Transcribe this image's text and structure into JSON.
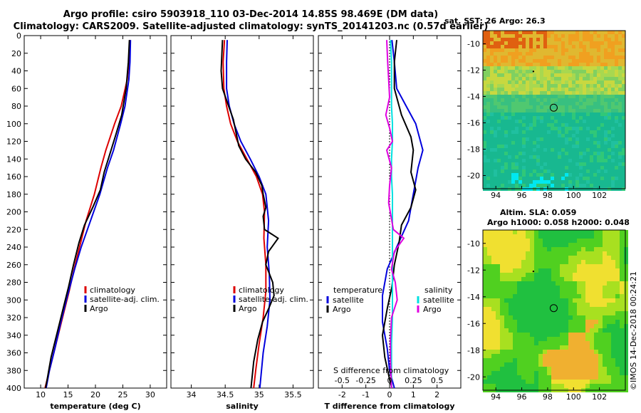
{
  "header": {
    "title_line1": "Argo profile: csiro 5903918_110 03-Dec-2014 14.85S 98.469E (DM data)",
    "title_line2": "Climatology: CARS2009. Satellite-adjusted climatology: synTS_20141203.nc (0.57d earlier)"
  },
  "colors": {
    "climatology": "#dd0000",
    "satellite": "#0000dd",
    "argo": "#000000",
    "sat_salinity": "#00e0e0",
    "argo_salinity": "#e000e0"
  },
  "chart_data": [
    {
      "type": "line",
      "id": "temperature",
      "xlabel": "temperature (deg C)",
      "ylabel": "",
      "xlim": [
        7,
        33
      ],
      "ylim": [
        400,
        0
      ],
      "xticks": [
        10,
        15,
        20,
        25,
        30
      ],
      "yticks": [
        0,
        20,
        40,
        60,
        80,
        100,
        120,
        140,
        160,
        180,
        200,
        220,
        240,
        260,
        280,
        300,
        320,
        340,
        360,
        380,
        400
      ],
      "legend": [
        "climatology",
        "satellite-adj. clim.",
        "Argo"
      ],
      "series": [
        {
          "name": "climatology",
          "color": "#dd0000",
          "points": [
            [
              26.3,
              5
            ],
            [
              26.1,
              30
            ],
            [
              25.8,
              50
            ],
            [
              24.7,
              80
            ],
            [
              23.5,
              100
            ],
            [
              21.9,
              130
            ],
            [
              21.0,
              150
            ],
            [
              19.8,
              180
            ],
            [
              18.3,
              210
            ],
            [
              17.1,
              240
            ],
            [
              16.3,
              260
            ],
            [
              15.2,
              290
            ],
            [
              14.0,
              320
            ],
            [
              12.8,
              350
            ],
            [
              11.6,
              380
            ],
            [
              10.8,
              400
            ]
          ]
        },
        {
          "name": "satellite-adj. clim.",
          "color": "#0000dd",
          "points": [
            [
              26.4,
              5
            ],
            [
              26.3,
              30
            ],
            [
              26.1,
              50
            ],
            [
              25.4,
              80
            ],
            [
              24.6,
              100
            ],
            [
              23.3,
              130
            ],
            [
              22.2,
              150
            ],
            [
              20.8,
              180
            ],
            [
              19.1,
              210
            ],
            [
              17.4,
              240
            ],
            [
              16.2,
              265
            ],
            [
              14.9,
              295
            ],
            [
              13.7,
              325
            ],
            [
              12.6,
              355
            ],
            [
              11.6,
              380
            ],
            [
              11.0,
              400
            ]
          ]
        },
        {
          "name": "Argo",
          "color": "#000000",
          "points": [
            [
              26.2,
              5
            ],
            [
              26.0,
              30
            ],
            [
              25.6,
              60
            ],
            [
              24.8,
              90
            ],
            [
              23.6,
              115
            ],
            [
              22.6,
              135
            ],
            [
              21.6,
              155
            ],
            [
              20.9,
              175
            ],
            [
              19.5,
              195
            ],
            [
              18.0,
              215
            ],
            [
              17.0,
              235
            ],
            [
              16.0,
              260
            ],
            [
              15.1,
              285
            ],
            [
              14.1,
              310
            ],
            [
              12.9,
              340
            ],
            [
              11.9,
              365
            ],
            [
              11.2,
              390
            ],
            [
              10.9,
              400
            ]
          ]
        }
      ]
    },
    {
      "type": "line",
      "id": "salinity",
      "xlabel": "salinity",
      "ylabel": "",
      "xlim": [
        33.7,
        35.8
      ],
      "ylim": [
        400,
        0
      ],
      "xticks": [
        34,
        34.5,
        35,
        35.5
      ],
      "xtick_labels": [
        "34",
        "34.5",
        "35",
        "35.5"
      ],
      "legend": [
        "climatology",
        "satellite-adj. clim.",
        "Argo"
      ],
      "series": [
        {
          "name": "climatology",
          "color": "#dd0000",
          "points": [
            [
              34.49,
              5
            ],
            [
              34.47,
              30
            ],
            [
              34.48,
              60
            ],
            [
              34.52,
              80
            ],
            [
              34.58,
              100
            ],
            [
              34.68,
              120
            ],
            [
              34.82,
              140
            ],
            [
              34.96,
              160
            ],
            [
              35.05,
              180
            ],
            [
              35.08,
              200
            ],
            [
              35.07,
              230
            ],
            [
              35.1,
              260
            ],
            [
              35.1,
              290
            ],
            [
              35.06,
              320
            ],
            [
              35.0,
              350
            ],
            [
              34.95,
              380
            ],
            [
              34.92,
              400
            ]
          ]
        },
        {
          "name": "satellite-adj. clim.",
          "color": "#0000dd",
          "points": [
            [
              34.53,
              5
            ],
            [
              34.52,
              30
            ],
            [
              34.52,
              60
            ],
            [
              34.56,
              80
            ],
            [
              34.63,
              100
            ],
            [
              34.73,
              120
            ],
            [
              34.87,
              140
            ],
            [
              35.0,
              160
            ],
            [
              35.1,
              180
            ],
            [
              35.14,
              210
            ],
            [
              35.12,
              240
            ],
            [
              35.15,
              270
            ],
            [
              35.16,
              300
            ],
            [
              35.12,
              330
            ],
            [
              35.06,
              360
            ],
            [
              35.01,
              400
            ]
          ]
        },
        {
          "name": "Argo",
          "color": "#000000",
          "points": [
            [
              34.46,
              5
            ],
            [
              34.44,
              40
            ],
            [
              34.46,
              60
            ],
            [
              34.55,
              80
            ],
            [
              34.62,
              95
            ],
            [
              34.66,
              110
            ],
            [
              34.7,
              125
            ],
            [
              34.8,
              140
            ],
            [
              34.95,
              155
            ],
            [
              35.04,
              170
            ],
            [
              35.06,
              180
            ],
            [
              35.1,
              195
            ],
            [
              35.06,
              205
            ],
            [
              35.08,
              220
            ],
            [
              35.28,
              230
            ],
            [
              35.14,
              245
            ],
            [
              35.1,
              260
            ],
            [
              35.2,
              280
            ],
            [
              35.22,
              295
            ],
            [
              35.14,
              310
            ],
            [
              35.05,
              325
            ],
            [
              34.98,
              345
            ],
            [
              34.92,
              370
            ],
            [
              34.88,
              400
            ]
          ]
        }
      ]
    },
    {
      "type": "line",
      "id": "difference",
      "xlabel": "T difference from climatology",
      "xlabel_top": "S difference from climatology",
      "ylabel": "",
      "xlim": [
        -3,
        3
      ],
      "ylim": [
        400,
        0
      ],
      "xticks": [
        -2,
        -1,
        0,
        1,
        2
      ],
      "xtick_labels": [
        "-2",
        "-1",
        "0",
        "1",
        "2"
      ],
      "s_xticks": [
        -0.5,
        -0.25,
        0,
        0.25,
        0.5
      ],
      "s_xtick_labels": [
        "-0.5",
        "-0.25",
        "0",
        "0.25",
        "0.5"
      ],
      "legend_temperature_title": "temperature",
      "legend_temperature": [
        "satellite",
        "Argo"
      ],
      "legend_salinity_title": "salinity",
      "legend_salinity": [
        "satellite",
        "Argo"
      ],
      "series": [
        {
          "name": "temperature satellite",
          "color": "#0000dd",
          "points": [
            [
              0.1,
              5
            ],
            [
              0.2,
              30
            ],
            [
              0.3,
              60
            ],
            [
              0.7,
              80
            ],
            [
              1.1,
              100
            ],
            [
              1.4,
              130
            ],
            [
              1.2,
              150
            ],
            [
              1.0,
              180
            ],
            [
              0.8,
              210
            ],
            [
              0.3,
              240
            ],
            [
              -0.1,
              265
            ],
            [
              -0.3,
              295
            ],
            [
              -0.3,
              325
            ],
            [
              -0.1,
              355
            ],
            [
              0.0,
              380
            ],
            [
              0.2,
              400
            ]
          ]
        },
        {
          "name": "temperature Argo",
          "color": "#000000",
          "points": [
            [
              0.3,
              5
            ],
            [
              0.2,
              30
            ],
            [
              0.2,
              60
            ],
            [
              0.5,
              90
            ],
            [
              0.9,
              115
            ],
            [
              1.0,
              130
            ],
            [
              0.9,
              155
            ],
            [
              1.1,
              175
            ],
            [
              0.9,
              195
            ],
            [
              0.5,
              215
            ],
            [
              0.4,
              235
            ],
            [
              0.2,
              260
            ],
            [
              0.1,
              285
            ],
            [
              -0.1,
              310
            ],
            [
              -0.3,
              340
            ],
            [
              -0.2,
              365
            ],
            [
              0.0,
              390
            ],
            [
              0.1,
              400
            ]
          ]
        },
        {
          "name": "salinity satellite",
          "color": "#00e0e0",
          "points": [
            [
              0.01,
              5
            ],
            [
              0.02,
              30
            ],
            [
              0.02,
              60
            ],
            [
              0.02,
              80
            ],
            [
              0.03,
              100
            ],
            [
              0.03,
              120
            ],
            [
              0.02,
              140
            ],
            [
              0.02,
              160
            ],
            [
              0.03,
              180
            ],
            [
              0.03,
              200
            ],
            [
              0.03,
              230
            ],
            [
              0.03,
              260
            ],
            [
              0.03,
              290
            ],
            [
              0.03,
              320
            ],
            [
              0.02,
              350
            ],
            [
              0.02,
              380
            ],
            [
              0.02,
              400
            ]
          ]
        },
        {
          "name": "salinity Argo",
          "color": "#e000e0",
          "points": [
            [
              -0.03,
              5
            ],
            [
              -0.02,
              30
            ],
            [
              -0.01,
              50
            ],
            [
              0.0,
              70
            ],
            [
              -0.04,
              90
            ],
            [
              0.0,
              105
            ],
            [
              0.03,
              120
            ],
            [
              -0.03,
              130
            ],
            [
              0.02,
              150
            ],
            [
              0.0,
              170
            ],
            [
              -0.01,
              190
            ],
            [
              0.04,
              220
            ],
            [
              0.15,
              230
            ],
            [
              0.05,
              245
            ],
            [
              0.02,
              265
            ],
            [
              0.06,
              280
            ],
            [
              0.08,
              300
            ],
            [
              0.02,
              320
            ],
            [
              0.01,
              345
            ],
            [
              0.01,
              370
            ],
            [
              0.02,
              400
            ]
          ]
        }
      ]
    },
    {
      "type": "heatmap",
      "id": "sst_map",
      "title": "sat. SST: 26 Argo: 26.3",
      "xlim": [
        93,
        104
      ],
      "ylim": [
        -21,
        -9
      ],
      "xticks": [
        94,
        96,
        98,
        100,
        102
      ],
      "yticks": [
        -10,
        -12,
        -14,
        -16,
        -18,
        -20
      ],
      "xtick_labels": [
        "94",
        "96",
        "98",
        "100",
        "102"
      ],
      "ytick_labels": [
        "-10",
        "-12",
        "-14",
        "-16",
        "-18",
        "-20"
      ],
      "marker_lon": 98.469,
      "marker_lat": -14.85
    },
    {
      "type": "heatmap",
      "id": "sla_map",
      "title": "Altim. SLA: 0.059",
      "subtitle": "Argo h1000: 0.058 h2000: 0.048",
      "xlim": [
        93,
        104
      ],
      "ylim": [
        -21,
        -9
      ],
      "xticks": [
        94,
        96,
        98,
        100,
        102
      ],
      "yticks": [
        -10,
        -12,
        -14,
        -16,
        -18,
        -20
      ],
      "xtick_labels": [
        "94",
        "96",
        "98",
        "100",
        "102"
      ],
      "ytick_labels": [
        "-10",
        "-12",
        "-14",
        "-16",
        "-18",
        "-20"
      ],
      "marker_lon": 98.469,
      "marker_lat": -14.85
    }
  ],
  "footer": {
    "credit": "©IMOS 14-Dec-2018 00:24:21"
  }
}
